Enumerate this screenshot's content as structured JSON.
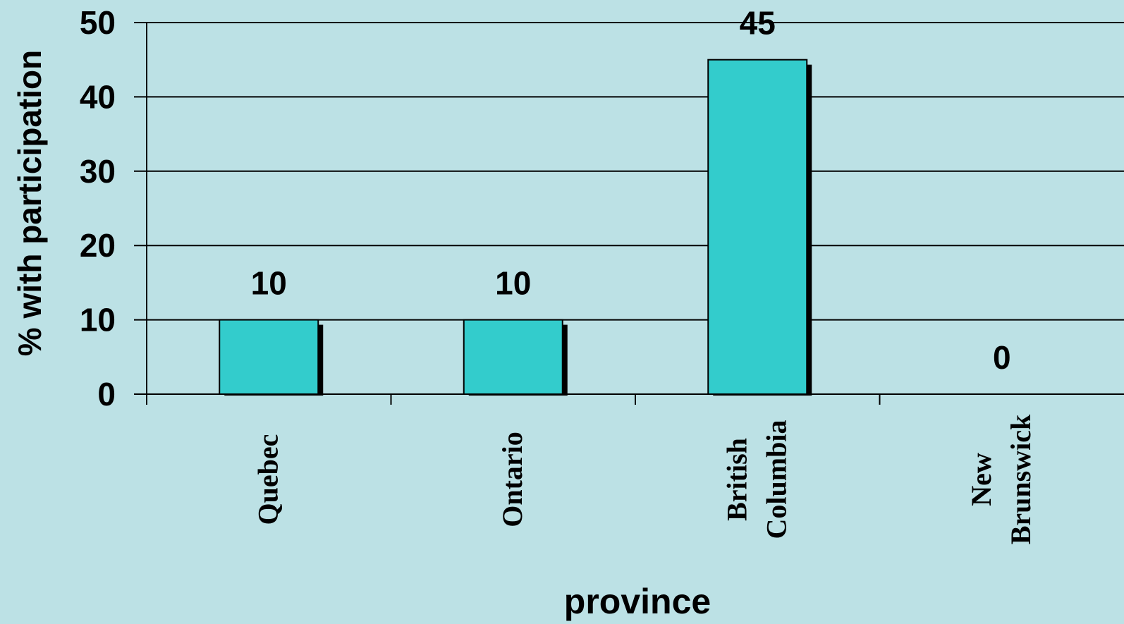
{
  "chart_data": {
    "type": "bar",
    "categories": [
      [
        "Quebec"
      ],
      [
        "Ontario"
      ],
      [
        "British",
        "Columbia"
      ],
      [
        "New",
        "Brunswick"
      ]
    ],
    "values": [
      10,
      10,
      45,
      0
    ],
    "data_labels": [
      "10",
      "10",
      "45",
      "0"
    ],
    "title": "",
    "xlabel": "province",
    "ylabel": "% with participation",
    "ylim": [
      0,
      50
    ],
    "yticks": [
      "0",
      "10",
      "20",
      "30",
      "40",
      "50"
    ],
    "grid": true,
    "legend": "none",
    "colors": {
      "background": "#bce1e5",
      "bar": "#33cccc",
      "bar_shadow": "#000000",
      "axis": "#000000",
      "text": "#000000"
    }
  }
}
